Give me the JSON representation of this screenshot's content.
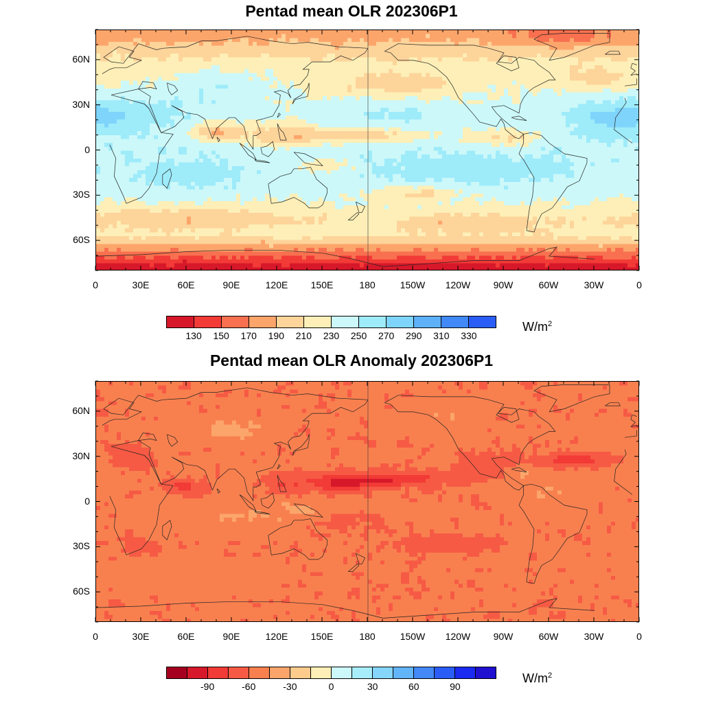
{
  "panels": [
    {
      "title": "Pentad mean OLR 202306P1",
      "lat_labels": [
        "60N",
        "30N",
        "0",
        "30S",
        "60S"
      ],
      "lon_labels": [
        "0",
        "30E",
        "60E",
        "90E",
        "120E",
        "150E",
        "180",
        "150W",
        "120W",
        "90W",
        "60W",
        "30W",
        "0"
      ],
      "colorbar": {
        "colors": [
          "#d7182a",
          "#f23a36",
          "#f8704f",
          "#fca56b",
          "#fdd49a",
          "#fdefb7",
          "#ccf8f9",
          "#9eebfa",
          "#7fd4fb",
          "#5eb1f9",
          "#4289f8",
          "#2a5df5"
        ],
        "labels": [
          "130",
          "150",
          "170",
          "190",
          "210",
          "230",
          "250",
          "270",
          "290",
          "310",
          "330"
        ],
        "unit": "W/m",
        "unit_sup": "2"
      }
    },
    {
      "title": "Pentad mean OLR Anomaly 202306P1",
      "lat_labels": [
        "60N",
        "30N",
        "0",
        "30S",
        "60S"
      ],
      "lon_labels": [
        "0",
        "30E",
        "60E",
        "90E",
        "120E",
        "150E",
        "180",
        "150W",
        "120W",
        "90W",
        "60W",
        "30W",
        "0"
      ],
      "colorbar": {
        "colors": [
          "#a5001f",
          "#d7182a",
          "#f23a36",
          "#f65a44",
          "#f8804f",
          "#fca56b",
          "#fdcb8c",
          "#fdefb7",
          "#ccf8f9",
          "#a8edfa",
          "#86d6fb",
          "#63b5f9",
          "#4389f8",
          "#2a5df5",
          "#1a2af0",
          "#2010d0"
        ],
        "labels": [
          "-90",
          "-60",
          "-30",
          "0",
          "30",
          "60",
          "90"
        ],
        "unit": "W/m",
        "unit_sup": "2"
      }
    }
  ]
}
